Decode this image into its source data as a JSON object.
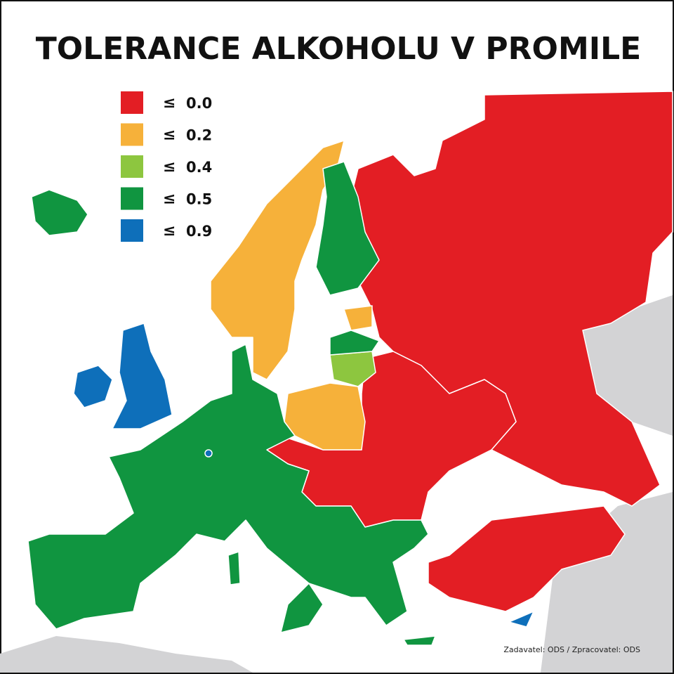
{
  "title": "TOLERANCE ALKOHOLU V PROMILE",
  "legend": [
    {
      "symbol": "≤",
      "value": "0.0",
      "color": "#e31e24"
    },
    {
      "symbol": "≤",
      "value": "0.2",
      "color": "#f6b13a"
    },
    {
      "symbol": "≤",
      "value": "0.4",
      "color": "#8dc63f"
    },
    {
      "symbol": "≤",
      "value": "0.5",
      "color": "#109540"
    },
    {
      "symbol": "≤",
      "value": "0.9",
      "color": "#0e6fba"
    }
  ],
  "credit": "Zadavatel: ODS / Zpracovatel: ODS"
}
